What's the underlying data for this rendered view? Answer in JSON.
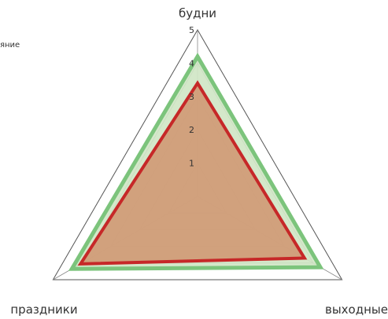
{
  "chart_data": {
    "type": "radar",
    "categories": [
      "будни",
      "выходные",
      "праздники"
    ],
    "rmax": 5,
    "ticks": [
      "1",
      "2",
      "3",
      "4",
      "5"
    ],
    "series": [
      {
        "values": [
          4.2,
          4.25,
          4.35
        ],
        "color": "#7cc47c",
        "fill": "#cfe6c4"
      },
      {
        "values": [
          3.4,
          3.7,
          4.05
        ],
        "color": "#c62828",
        "fill": "#d09a76"
      }
    ],
    "legend_fragment": "яние",
    "grid": true
  }
}
